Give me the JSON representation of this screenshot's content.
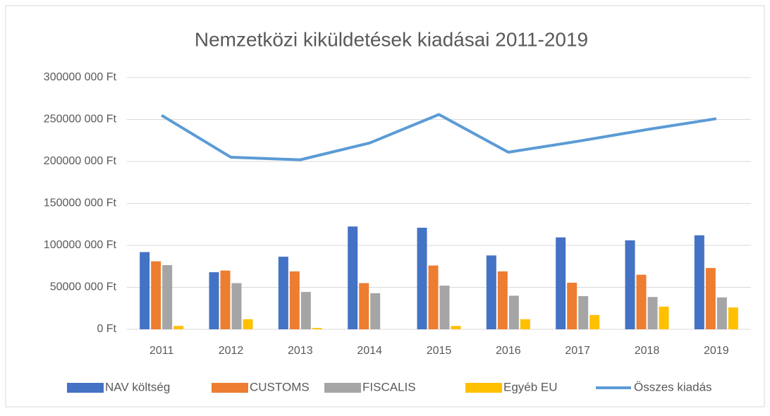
{
  "chart_data": {
    "type": "bar",
    "title": "Nemzetközi kiküldetések kiadásai 2011-2019",
    "categories": [
      "2011",
      "2012",
      "2013",
      "2014",
      "2015",
      "2016",
      "2017",
      "2018",
      "2019"
    ],
    "series": [
      {
        "name": "NAV költség",
        "color": "#4472c4",
        "values": [
          92000000,
          68000000,
          86500000,
          122500000,
          121000000,
          88000000,
          109500000,
          106000000,
          112000000
        ]
      },
      {
        "name": "CUSTOMS",
        "color": "#ed7d31",
        "values": [
          81000000,
          70000000,
          69000000,
          55000000,
          76000000,
          69000000,
          55500000,
          65000000,
          73000000
        ]
      },
      {
        "name": "FISCALIS",
        "color": "#a5a5a5",
        "values": [
          76500000,
          55000000,
          44500000,
          43000000,
          52000000,
          40000000,
          39500000,
          38500000,
          38000000
        ]
      },
      {
        "name": "Egyéb EU",
        "color": "#ffc000",
        "values": [
          4000000,
          12000000,
          1500000,
          0,
          4000000,
          12000000,
          17000000,
          27000000,
          26000000
        ]
      },
      {
        "name": "Összes kiadás",
        "type": "line",
        "color": "#5b9bd5",
        "values": [
          255000000,
          205000000,
          202000000,
          222000000,
          256000000,
          211000000,
          224000000,
          238000000,
          251000000
        ]
      }
    ],
    "ylim": [
      0,
      300000000
    ],
    "yticks": [
      {
        "value": 0,
        "label": "0 Ft"
      },
      {
        "value": 50000000,
        "label": "50000 000 Ft"
      },
      {
        "value": 100000000,
        "label": "100000 000 Ft"
      },
      {
        "value": 150000000,
        "label": "150000 000 Ft"
      },
      {
        "value": 200000000,
        "label": "200000 000 Ft"
      },
      {
        "value": 250000000,
        "label": "250000 000 Ft"
      },
      {
        "value": 300000000,
        "label": "300000 000 Ft"
      }
    ],
    "grid": true,
    "legend": "bottom"
  }
}
